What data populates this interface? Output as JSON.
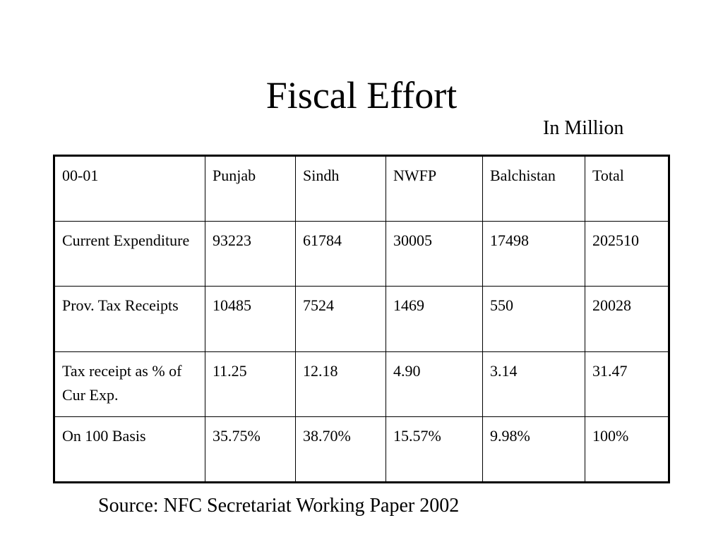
{
  "slide": {
    "title": "Fiscal Effort",
    "unit_note": "In Million",
    "source": "Source: NFC Secretariat Working Paper 2002"
  },
  "table": {
    "header": [
      "00-01",
      "Punjab",
      "Sindh",
      "NWFP",
      "Balchistan",
      "Total"
    ],
    "rows": [
      [
        "Current Expenditure",
        "93223",
        "61784",
        "30005",
        "17498",
        "202510"
      ],
      [
        "Prov. Tax Receipts",
        "10485",
        "7524",
        "1469",
        "550",
        "20028"
      ],
      [
        "Tax receipt as % of Cur Exp.",
        "11.25",
        "12.18",
        "4.90",
        "3.14",
        "31.47"
      ],
      [
        "On 100 Basis",
        "35.75%",
        "38.70%",
        "15.57%",
        "9.98%",
        "100%"
      ]
    ]
  }
}
